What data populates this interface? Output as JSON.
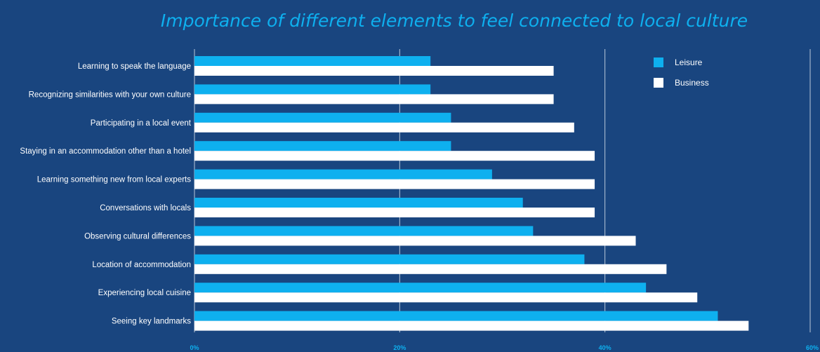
{
  "chart_data": {
    "type": "bar",
    "orientation": "horizontal",
    "title": "Importance of different elements to feel connected to local culture",
    "categories": [
      "Learning to speak the language",
      "Recognizing similarities with your own culture",
      "Participating in a local event",
      "Staying in an accommodation other than a hotel",
      "Learning something new from local experts",
      "Conversations with locals",
      "Observing cultural differences",
      "Location of accommodation",
      "Experiencing local cuisine",
      "Seeing key landmarks"
    ],
    "series": [
      {
        "name": "Leisure",
        "color": "#0eb0ef",
        "values": [
          23,
          23,
          25,
          25,
          29,
          32,
          33,
          38,
          44,
          51
        ]
      },
      {
        "name": "Business",
        "color": "#ffffff",
        "values": [
          35,
          35,
          37,
          39,
          39,
          39,
          43,
          46,
          49,
          54
        ]
      }
    ],
    "xlim": [
      0,
      60
    ],
    "x_ticks": [
      "0%",
      "20%",
      "40%",
      "60%"
    ],
    "x_tick_values": [
      0,
      20,
      40,
      60
    ],
    "grid": true,
    "legend_position": "top-right",
    "colors": {
      "background": "#19457f",
      "title": "#0eb0ef",
      "grid": "#d6dfea",
      "text": "#ffffff",
      "tick": "#0eb0ef"
    }
  }
}
